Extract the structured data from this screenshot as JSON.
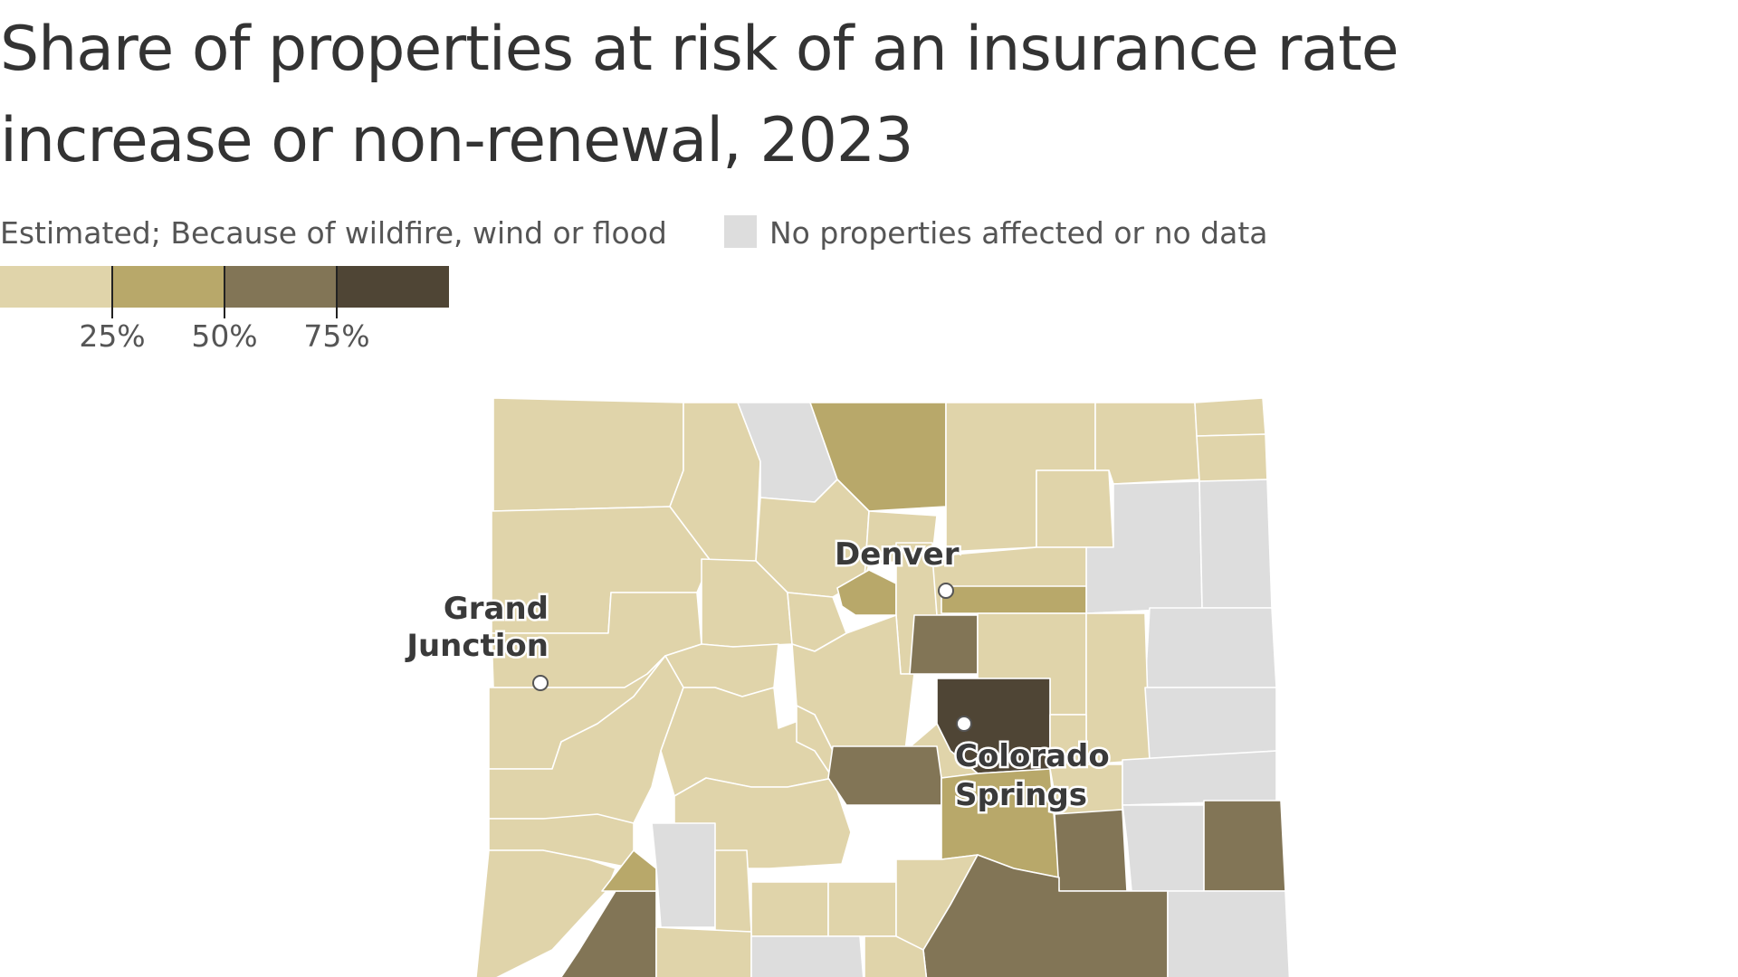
{
  "title": "Share of properties at risk of an insurance rate increase or non-renewal, 2023",
  "legend": {
    "label": "Estimated; Because of wildfire, wind or flood",
    "no_data_label": "No properties affected or no data",
    "no_data_color": "#dddddd",
    "bins": [
      {
        "color": "#e0d4aa",
        "range": "0–25%"
      },
      {
        "color": "#b8a86a",
        "range": "25–50%"
      },
      {
        "color": "#827556",
        "range": "50–75%"
      },
      {
        "color": "#4f4535",
        "range": "75–100%"
      }
    ],
    "ticks": [
      "25%",
      "50%",
      "75%"
    ]
  },
  "cities": [
    {
      "name": "Grand Junction",
      "line1": "Grand",
      "line2": "Junction"
    },
    {
      "name": "Denver",
      "line1": "Denver",
      "line2": ""
    },
    {
      "name": "Colorado Springs",
      "line1": "Colorado",
      "line2": "Springs"
    }
  ]
}
